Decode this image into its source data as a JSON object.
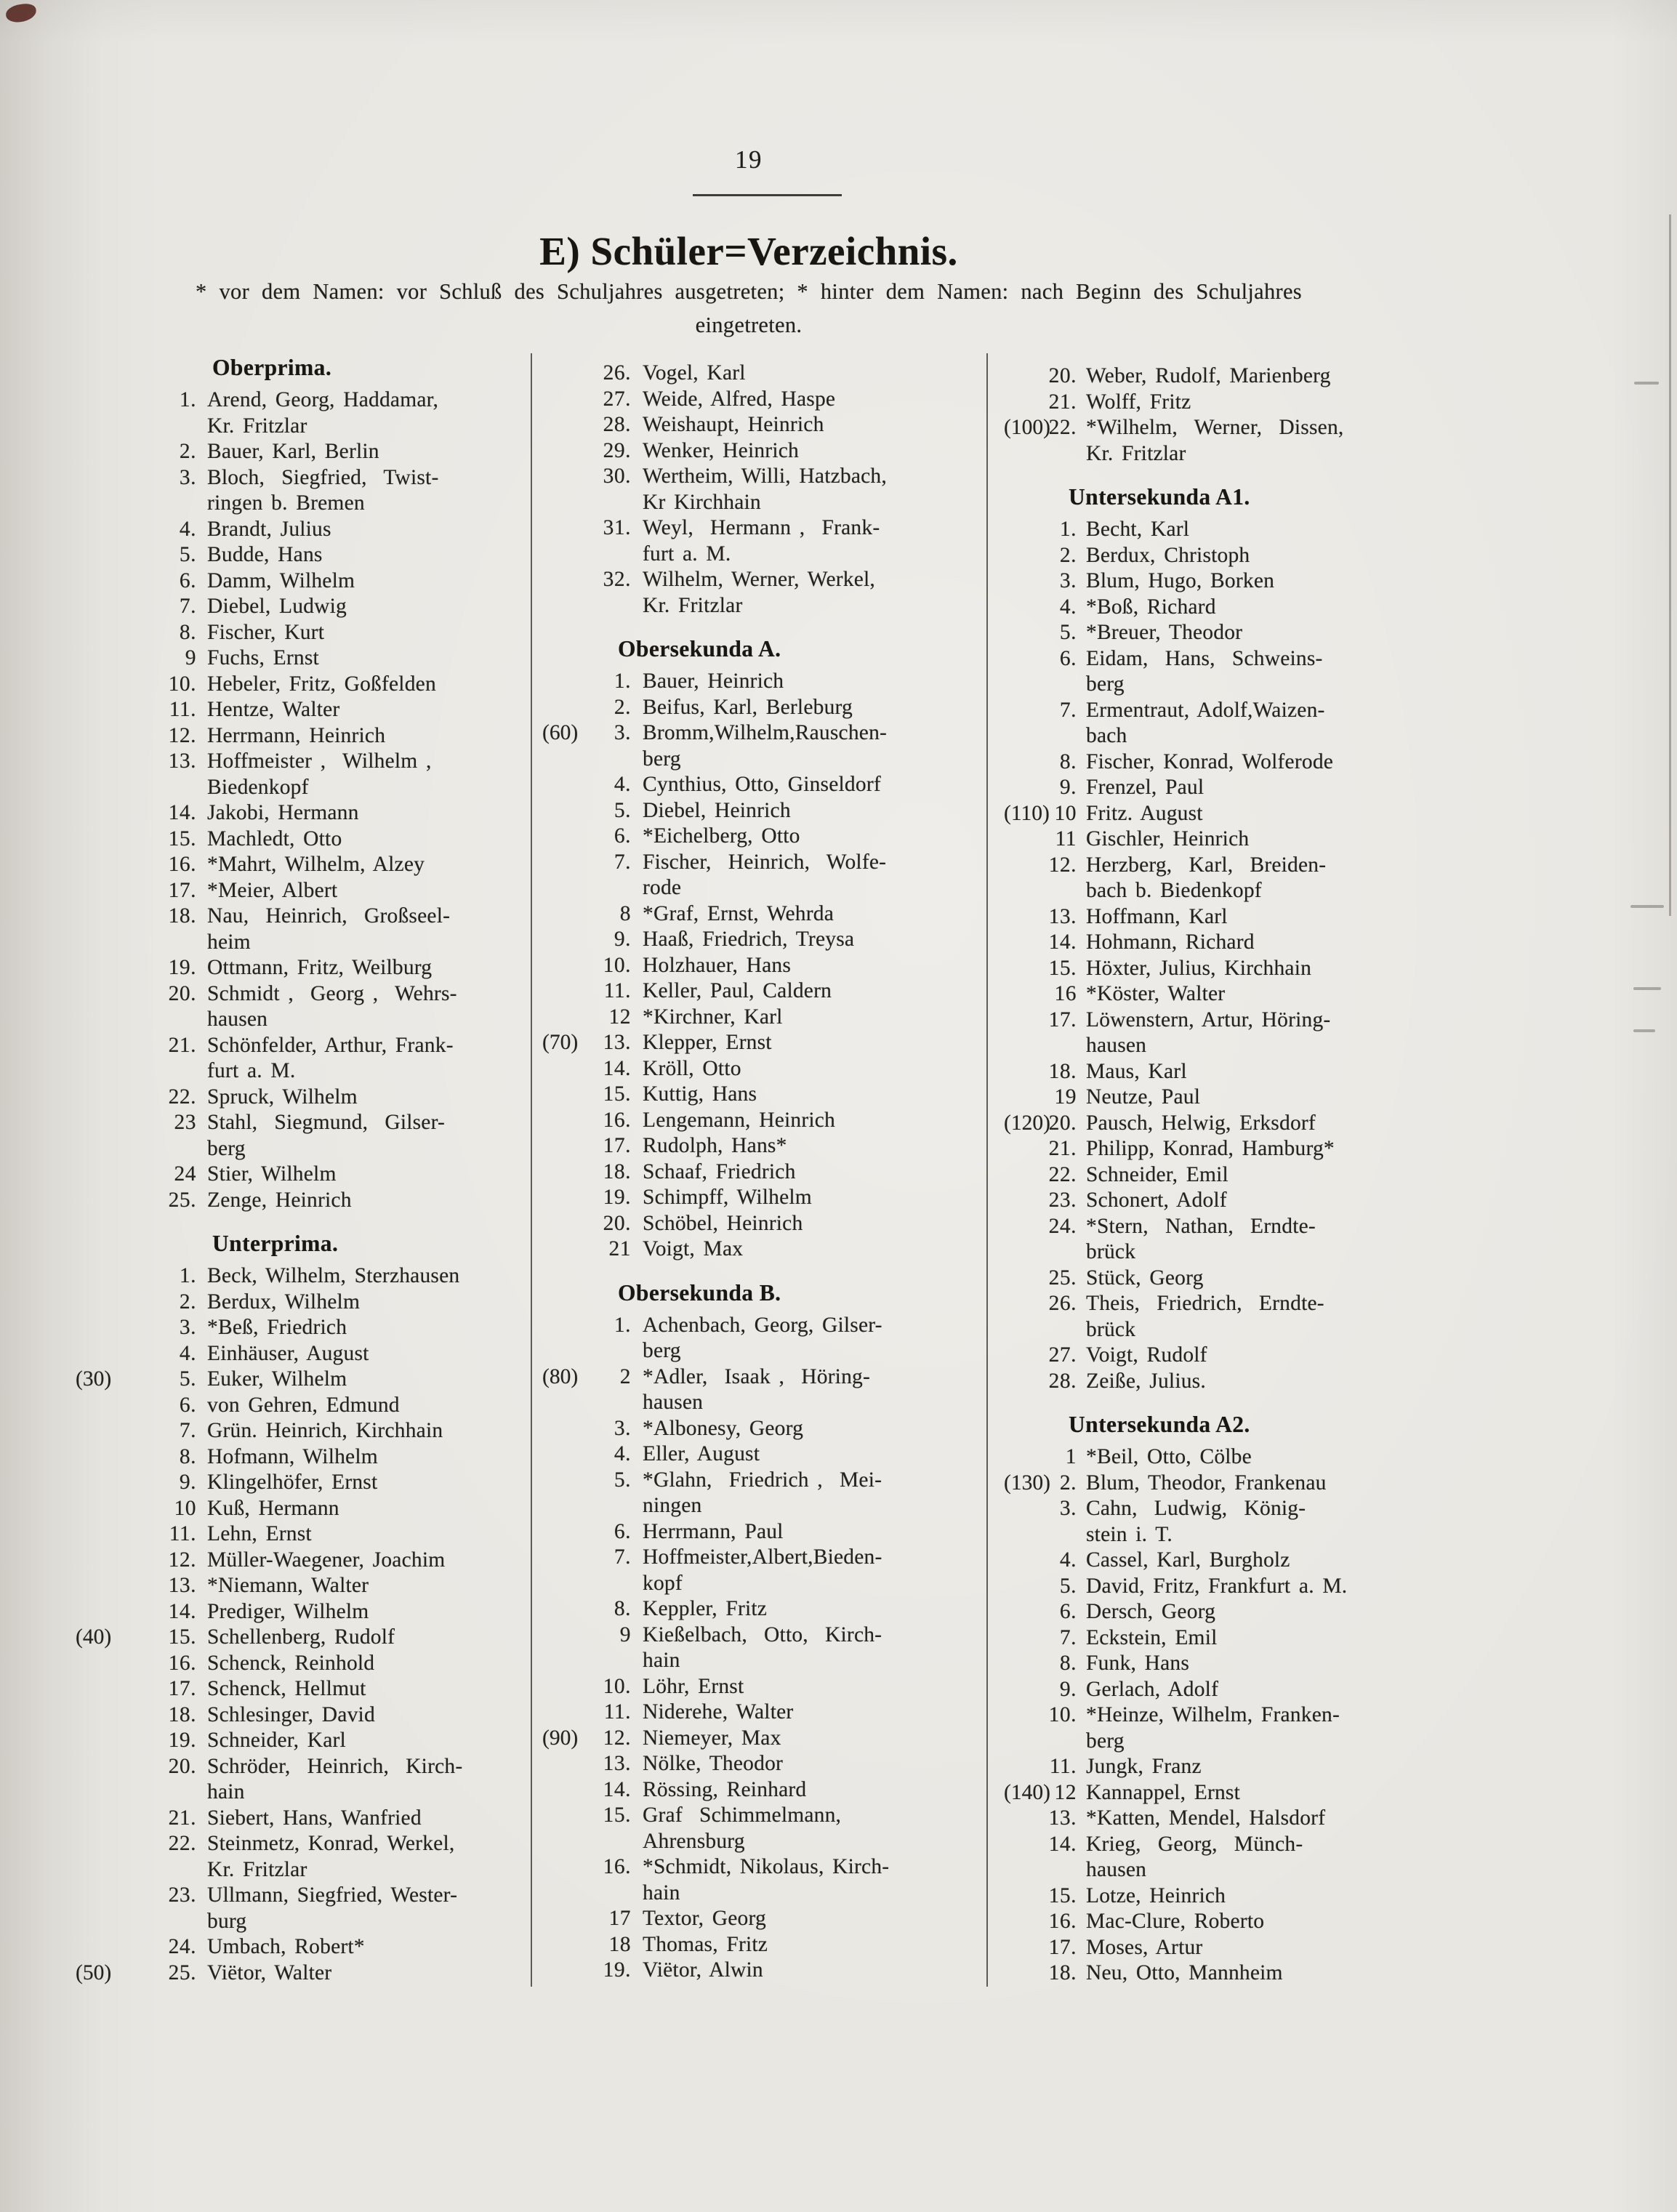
{
  "colors": {
    "paper": "#e9e7e2",
    "ink": "#26231e"
  },
  "page": {
    "number": "19",
    "title": "E) Schüler=Verzeichnis.",
    "legend_line1": "* vor dem Namen: vor Schluß des Schuljahres ausgetreten; * hinter dem Namen: nach Beginn des Schuljahres",
    "legend_line2": "eingetreten."
  },
  "columns": [
    {
      "blocks": [
        {
          "header": "Oberprima."
        },
        {
          "num": "1.",
          "text": "Arend, Georg, Haddamar,\nKr. Fritzlar"
        },
        {
          "num": "2.",
          "text": "Bauer, Karl, Berlin"
        },
        {
          "num": "3.",
          "text": "Bloch,  Siegfried,  Twist-\nringen b. Bremen"
        },
        {
          "num": "4.",
          "text": "Brandt, Julius"
        },
        {
          "num": "5.",
          "text": "Budde, Hans"
        },
        {
          "num": "6.",
          "text": "Damm, Wilhelm"
        },
        {
          "num": "7.",
          "text": "Diebel, Ludwig"
        },
        {
          "num": "8.",
          "text": "Fischer, Kurt"
        },
        {
          "num": "9",
          "text": "Fuchs, Ernst"
        },
        {
          "num": "10.",
          "text": "Hebeler, Fritz, Goßfelden"
        },
        {
          "num": "11.",
          "text": "Hentze, Walter"
        },
        {
          "num": "12.",
          "text": "Herrmann, Heinrich"
        },
        {
          "num": "13.",
          "text": "Hoffmeister ,  Wilhelm ,\nBiedenkopf"
        },
        {
          "num": "14.",
          "text": "Jakobi, Hermann"
        },
        {
          "num": "15.",
          "text": "Machledt, Otto"
        },
        {
          "num": "16.",
          "text": "*Mahrt, Wilhelm, Alzey"
        },
        {
          "num": "17.",
          "text": "*Meier, Albert"
        },
        {
          "num": "18.",
          "text": "Nau,  Heinrich,  Großseel-\nheim"
        },
        {
          "num": "19.",
          "text": "Ottmann, Fritz, Weilburg"
        },
        {
          "num": "20.",
          "text": "Schmidt ,  Georg ,  Wehrs-\nhausen"
        },
        {
          "num": "21.",
          "text": "Schönfelder, Arthur, Frank-\nfurt a. M."
        },
        {
          "num": "22.",
          "text": "Spruck, Wilhelm"
        },
        {
          "num": "23",
          "text": "Stahl,  Siegmund,  Gilser-\nberg"
        },
        {
          "num": "24",
          "text": "Stier, Wilhelm"
        },
        {
          "num": "25.",
          "text": "Zenge, Heinrich"
        },
        {
          "header": "Unterprima."
        },
        {
          "num": "1.",
          "text": "Beck, Wilhelm, Sterzhausen"
        },
        {
          "num": "2.",
          "text": "Berdux, Wilhelm"
        },
        {
          "num": "3.",
          "text": "*Beß, Friedrich"
        },
        {
          "num": "4.",
          "text": "Einhäuser, August"
        },
        {
          "margin": "(30)",
          "num": "5.",
          "text": "Euker, Wilhelm"
        },
        {
          "num": "6.",
          "text": "von Gehren, Edmund"
        },
        {
          "num": "7.",
          "text": "Grün. Heinrich, Kirchhain"
        },
        {
          "num": "8.",
          "text": "Hofmann, Wilhelm"
        },
        {
          "num": "9.",
          "text": "Klingelhöfer, Ernst"
        },
        {
          "num": "10",
          "text": "Kuß, Hermann"
        },
        {
          "num": "11.",
          "text": "Lehn, Ernst"
        },
        {
          "num": "12.",
          "text": "Müller-Waegener, Joachim"
        },
        {
          "num": "13.",
          "text": "*Niemann, Walter"
        },
        {
          "num": "14.",
          "text": "Prediger, Wilhelm"
        },
        {
          "margin": "(40)",
          "num": "15.",
          "text": "Schellenberg, Rudolf"
        },
        {
          "num": "16.",
          "text": "Schenck, Reinhold"
        },
        {
          "num": "17.",
          "text": "Schenck, Hellmut"
        },
        {
          "num": "18.",
          "text": "Schlesinger, David"
        },
        {
          "num": "19.",
          "text": "Schneider, Karl"
        },
        {
          "num": "20.",
          "text": "Schröder,  Heinrich,  Kirch-\nhain"
        },
        {
          "num": "21.",
          "text": "Siebert, Hans, Wanfried"
        },
        {
          "num": "22.",
          "text": "Steinmetz, Konrad, Werkel,\nKr. Fritzlar"
        },
        {
          "num": "23.",
          "text": "Ullmann, Siegfried, Wester-\nburg"
        },
        {
          "num": "24.",
          "text": "Umbach, Robert*"
        },
        {
          "margin": "(50)",
          "num": "25.",
          "text": "Viëtor, Walter"
        }
      ]
    },
    {
      "blocks": [
        {
          "num": "26.",
          "text": "Vogel, Karl"
        },
        {
          "num": "27.",
          "text": "Weide, Alfred, Haspe"
        },
        {
          "num": "28.",
          "text": "Weishaupt, Heinrich"
        },
        {
          "num": "29.",
          "text": "Wenker, Heinrich"
        },
        {
          "num": "30.",
          "text": "Wertheim, Willi, Hatzbach,\nKr Kirchhain"
        },
        {
          "num": "31.",
          "text": "Weyl,  Hermann ,  Frank-\nfurt a. M."
        },
        {
          "num": "32.",
          "text": "Wilhelm, Werner, Werkel,\nKr. Fritzlar"
        },
        {
          "header": "Obersekunda A."
        },
        {
          "num": "1.",
          "text": "Bauer, Heinrich"
        },
        {
          "num": "2.",
          "text": "Beifus, Karl, Berleburg"
        },
        {
          "margin": "(60)",
          "num": "3.",
          "text": "Bromm,Wilhelm,Rauschen-\nberg"
        },
        {
          "num": "4.",
          "text": "Cynthius, Otto, Ginseldorf"
        },
        {
          "num": "5.",
          "text": "Diebel, Heinrich"
        },
        {
          "num": "6.",
          "text": "*Eichelberg, Otto"
        },
        {
          "num": "7.",
          "text": "Fischer,  Heinrich,  Wolfe-\nrode"
        },
        {
          "num": "8",
          "text": "*Graf, Ernst, Wehrda"
        },
        {
          "num": "9.",
          "text": "Haaß, Friedrich, Treysa"
        },
        {
          "num": "10.",
          "text": "Holzhauer, Hans"
        },
        {
          "num": "11.",
          "text": "Keller, Paul, Caldern"
        },
        {
          "num": "12",
          "text": "*Kirchner, Karl"
        },
        {
          "margin": "(70)",
          "num": "13.",
          "text": "Klepper, Ernst"
        },
        {
          "num": "14.",
          "text": "Kröll, Otto"
        },
        {
          "num": "15.",
          "text": "Kuttig, Hans"
        },
        {
          "num": "16.",
          "text": "Lengemann, Heinrich"
        },
        {
          "num": "17.",
          "text": "Rudolph, Hans*"
        },
        {
          "num": "18.",
          "text": "Schaaf, Friedrich"
        },
        {
          "num": "19.",
          "text": "Schimpff, Wilhelm"
        },
        {
          "num": "20.",
          "text": "Schöbel, Heinrich"
        },
        {
          "num": "21",
          "text": "Voigt, Max"
        },
        {
          "header": "Obersekunda B."
        },
        {
          "num": "1.",
          "text": "Achenbach, Georg, Gilser-\nberg"
        },
        {
          "margin": "(80)",
          "num": "2",
          "text": "*Adler,  Isaak ,  Höring-\nhausen"
        },
        {
          "num": "3.",
          "text": "*Albonesy, Georg"
        },
        {
          "num": "4.",
          "text": "Eller, August"
        },
        {
          "num": "5.",
          "text": "*Glahn,  Friedrich ,  Mei-\nningen"
        },
        {
          "num": "6.",
          "text": "Herrmann, Paul"
        },
        {
          "num": "7.",
          "text": "Hoffmeister,Albert,Bieden-\nkopf"
        },
        {
          "num": "8.",
          "text": "Keppler, Fritz"
        },
        {
          "num": "9",
          "text": "Kießelbach,  Otto,  Kirch-\nhain"
        },
        {
          "num": "10.",
          "text": "Löhr, Ernst"
        },
        {
          "num": "11.",
          "text": "Niderehe, Walter"
        },
        {
          "margin": "(90)",
          "num": "12.",
          "text": "Niemeyer, Max"
        },
        {
          "num": "13.",
          "text": "Nölke, Theodor"
        },
        {
          "num": "14.",
          "text": "Rössing, Reinhard"
        },
        {
          "num": "15.",
          "text": "Graf  Schimmelmann,\nAhrensburg"
        },
        {
          "num": "16.",
          "text": "*Schmidt, Nikolaus, Kirch-\nhain"
        },
        {
          "num": "17",
          "text": "Textor, Georg"
        },
        {
          "num": "18",
          "text": "Thomas, Fritz"
        },
        {
          "num": "19.",
          "text": "Viëtor, Alwin"
        }
      ]
    },
    {
      "blocks": [
        {
          "num": "20.",
          "text": "Weber, Rudolf, Marienberg"
        },
        {
          "num": "21.",
          "text": "Wolff, Fritz"
        },
        {
          "margin": "(100)",
          "num": "22.",
          "text": "*Wilhelm,  Werner,  Dissen,\nKr. Fritzlar"
        },
        {
          "header": "Untersekunda A1."
        },
        {
          "num": "1.",
          "text": "Becht, Karl"
        },
        {
          "num": "2.",
          "text": "Berdux, Christoph"
        },
        {
          "num": "3.",
          "text": "Blum, Hugo, Borken"
        },
        {
          "num": "4.",
          "text": "*Boß, Richard"
        },
        {
          "num": "5.",
          "text": "*Breuer, Theodor"
        },
        {
          "num": "6.",
          "text": "Eidam,  Hans,  Schweins-\nberg"
        },
        {
          "num": "7.",
          "text": "Ermentraut, Adolf,Waizen-\nbach"
        },
        {
          "num": "8.",
          "text": "Fischer, Konrad, Wolferode"
        },
        {
          "num": "9.",
          "text": "Frenzel, Paul"
        },
        {
          "margin": "(110)",
          "num": "10",
          "text": "Fritz. August"
        },
        {
          "num": "11",
          "text": "Gischler, Heinrich"
        },
        {
          "num": "12.",
          "text": "Herzberg,  Karl,  Breiden-\nbach b. Biedenkopf"
        },
        {
          "num": "13.",
          "text": "Hoffmann, Karl"
        },
        {
          "num": "14.",
          "text": "Hohmann, Richard"
        },
        {
          "num": "15.",
          "text": "Höxter, Julius, Kirchhain"
        },
        {
          "num": "16",
          "text": "*Köster, Walter"
        },
        {
          "num": "17.",
          "text": "Löwenstern, Artur, Höring-\nhausen"
        },
        {
          "num": "18.",
          "text": "Maus, Karl"
        },
        {
          "num": "19",
          "text": "Neutze, Paul"
        },
        {
          "margin": "(120)",
          "num": "20.",
          "text": "Pausch, Helwig, Erksdorf"
        },
        {
          "num": "21.",
          "text": "Philipp, Konrad, Hamburg*"
        },
        {
          "num": "22.",
          "text": "Schneider, Emil"
        },
        {
          "num": "23.",
          "text": "Schonert, Adolf"
        },
        {
          "num": "24.",
          "text": "*Stern,  Nathan,  Erndte-\nbrück"
        },
        {
          "num": "25.",
          "text": "Stück, Georg"
        },
        {
          "num": "26.",
          "text": "Theis,  Friedrich,  Erndte-\nbrück"
        },
        {
          "num": "27.",
          "text": "Voigt, Rudolf"
        },
        {
          "num": "28.",
          "text": "Zeiße, Julius."
        },
        {
          "header": "Untersekunda A2."
        },
        {
          "num": "1",
          "text": "*Beil, Otto, Cölbe"
        },
        {
          "margin": "(130)",
          "num": "2.",
          "text": "Blum, Theodor, Frankenau"
        },
        {
          "num": "3.",
          "text": "Cahn,  Ludwig,  König-\nstein i. T."
        },
        {
          "num": "4.",
          "text": "Cassel, Karl, Burgholz"
        },
        {
          "num": "5.",
          "text": "David, Fritz, Frankfurt a. M."
        },
        {
          "num": "6.",
          "text": "Dersch, Georg"
        },
        {
          "num": "7.",
          "text": "Eckstein, Emil"
        },
        {
          "num": "8.",
          "text": "Funk, Hans"
        },
        {
          "num": "9.",
          "text": "Gerlach, Adolf"
        },
        {
          "num": "10.",
          "text": "*Heinze, Wilhelm, Franken-\nberg"
        },
        {
          "num": "11.",
          "text": "Jungk, Franz"
        },
        {
          "margin": "(140)",
          "num": "12",
          "text": "Kannappel, Ernst"
        },
        {
          "num": "13.",
          "text": "*Katten, Mendel, Halsdorf"
        },
        {
          "num": "14.",
          "text": "Krieg,  Georg,  Münch-\nhausen"
        },
        {
          "num": "15.",
          "text": "Lotze, Heinrich"
        },
        {
          "num": "16.",
          "text": "Mac-Clure, Roberto"
        },
        {
          "num": "17.",
          "text": "Moses, Artur"
        },
        {
          "num": "18.",
          "text": "Neu, Otto, Mannheim"
        }
      ]
    }
  ]
}
